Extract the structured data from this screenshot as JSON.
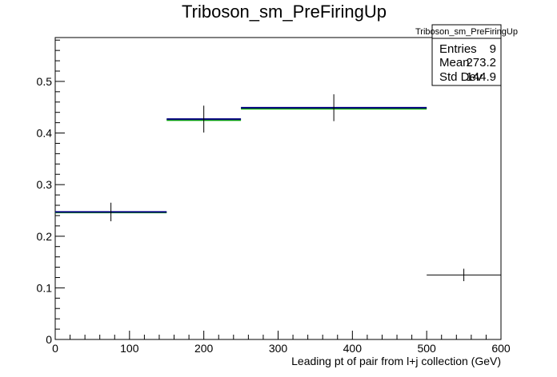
{
  "chart_data": {
    "type": "histogram",
    "title": "Triboson_sm_PreFiringUp",
    "xlabel": "Leading pt of pair from l+j collection (GeV)",
    "ylabel": "",
    "xlim": [
      0,
      600
    ],
    "ylim": [
      0,
      0.585
    ],
    "x_ticks": [
      0,
      100,
      200,
      300,
      400,
      500,
      600
    ],
    "y_ticks": [
      0,
      0.1,
      0.2,
      0.3,
      0.4,
      0.5
    ],
    "x_tick_labels": [
      "0",
      "100",
      "200",
      "300",
      "400",
      "500",
      "600"
    ],
    "y_tick_labels": [
      "0",
      "0.1",
      "0.2",
      "0.3",
      "0.4",
      "0.5"
    ],
    "bins": [
      {
        "low": 0,
        "high": 150,
        "center": 75,
        "value": 0.247,
        "error": 0.018
      },
      {
        "low": 150,
        "high": 250,
        "center": 200,
        "value": 0.427,
        "error": 0.026
      },
      {
        "low": 250,
        "high": 500,
        "center": 375,
        "value": 0.449,
        "error": 0.026
      },
      {
        "low": 500,
        "high": 600,
        "center": 550,
        "value": 0.125,
        "error": 0.012
      }
    ],
    "overlay_bins": [
      {
        "low": 0,
        "high": 150,
        "value": 0.246,
        "color": "#00aa00"
      },
      {
        "low": 150,
        "high": 250,
        "value": 0.425,
        "color": "#00aa00"
      },
      {
        "low": 250,
        "high": 500,
        "value": 0.447,
        "color": "#00aa00"
      }
    ],
    "main_color": "#000080",
    "grid": false,
    "stats_box": {
      "title": "Triboson_sm_PreFiringUp",
      "rows": [
        {
          "label": "Entries",
          "value": "9"
        },
        {
          "label": "Mean",
          "value": "273.2"
        },
        {
          "label": "Std Dev",
          "value": "144.9"
        }
      ],
      "placement": "top-right"
    }
  }
}
